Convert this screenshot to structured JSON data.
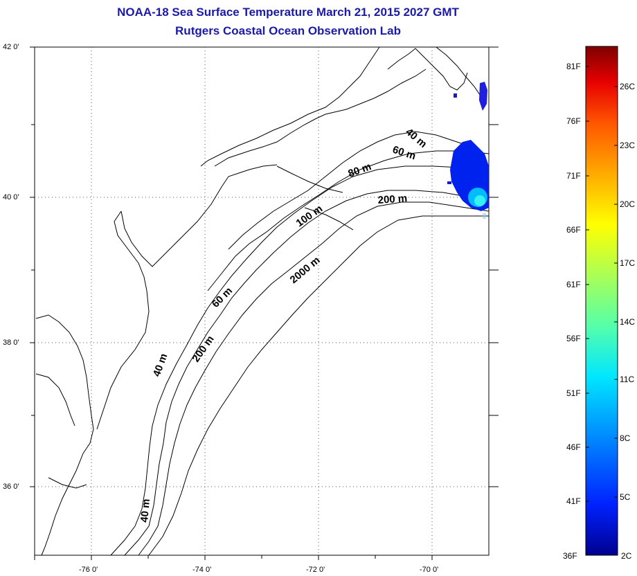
{
  "title": {
    "line1": "NOAA-18 Sea Surface Temperature March 21, 2015 2027 GMT",
    "line2": "Rutgers Coastal Ocean Observation Lab"
  },
  "map": {
    "lon_range": [
      -77,
      -69
    ],
    "lat_range": [
      35,
      42
    ],
    "lat_labels": [
      {
        "value": 42,
        "text": "42 0'"
      },
      {
        "value": 40,
        "text": "40 0'"
      },
      {
        "value": 38,
        "text": "38 0'"
      },
      {
        "value": 36,
        "text": "36 0'"
      }
    ],
    "lon_labels": [
      {
        "value": -76,
        "text": "-76 0'"
      },
      {
        "value": -74,
        "text": "-74 0'"
      },
      {
        "value": -72,
        "text": "-72 0'"
      },
      {
        "value": -70,
        "text": "-70 0'"
      }
    ],
    "gridlines": "dotted",
    "isobath_labels": [
      "40 m",
      "60 m",
      "80 m",
      "200 m",
      "100 m",
      "2000 m",
      "60 m",
      "200 m",
      "40 m",
      "40 m"
    ]
  },
  "colorbar": {
    "fahrenheit": [
      "81F",
      "76F",
      "71F",
      "66F",
      "61F",
      "56F",
      "51F",
      "46F",
      "41F",
      "36F"
    ],
    "celsius": [
      "26C",
      "23C",
      "20C",
      "17C",
      "14C",
      "11C",
      "8C",
      "5C",
      "2C"
    ],
    "colors": [
      "#7f0000",
      "#e60000",
      "#ff5500",
      "#ffaa00",
      "#ffff00",
      "#aaff55",
      "#55ffaa",
      "#00e6ff",
      "#0080ff",
      "#0022ff",
      "#00008f"
    ]
  }
}
